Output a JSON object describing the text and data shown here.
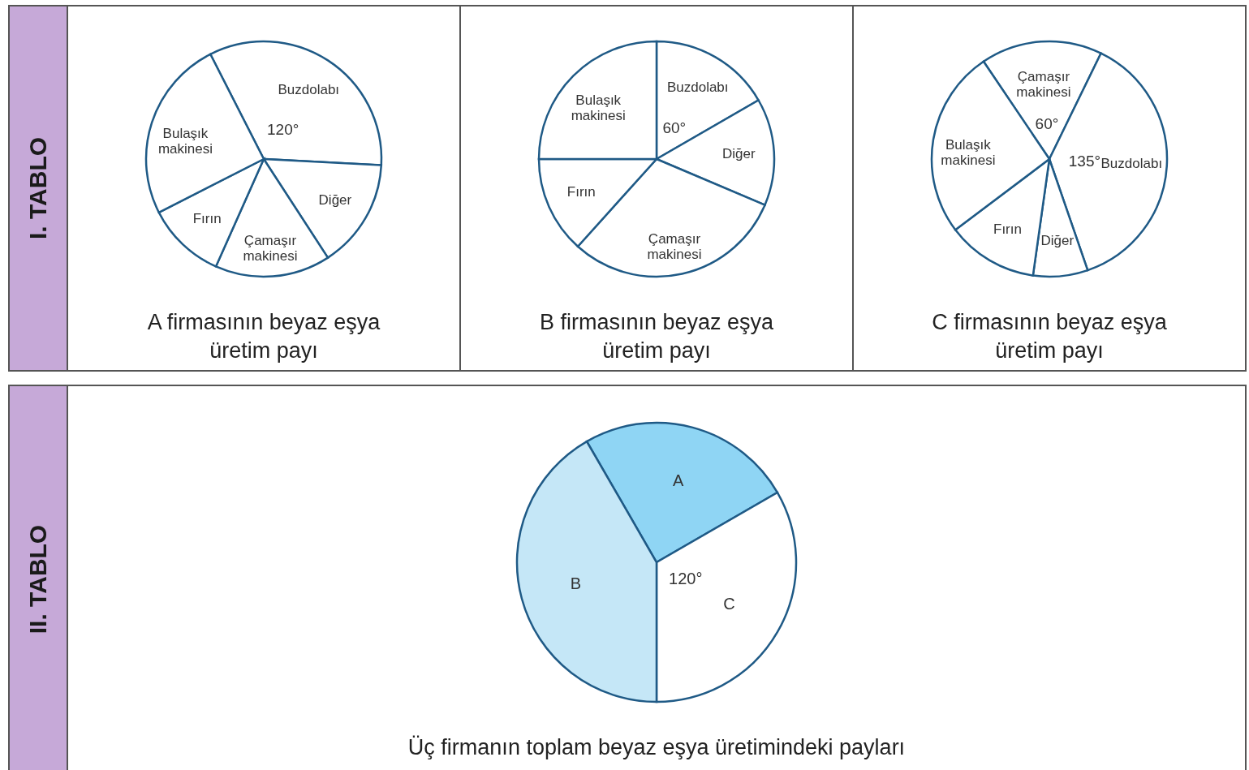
{
  "chart_data": [
    {
      "type": "pie",
      "title": "A firmasının beyaz eşya üretim payı",
      "annotations": [
        "I. TABLO"
      ],
      "categories": [
        "Buzdolabı",
        "Diğer",
        "Çamaşır makinesi",
        "Fırın",
        "Bulaşık makinesi"
      ],
      "values": [
        120,
        54,
        57,
        39,
        90
      ],
      "value_labels": [
        "120°",
        null,
        null,
        null,
        null
      ],
      "colors": [
        "#ffffff",
        "#ffffff",
        "#ffffff",
        "#ffffff",
        "#ffffff"
      ]
    },
    {
      "type": "pie",
      "title": "B firmasının beyaz eşya üretim payı",
      "categories": [
        "Buzdolabı",
        "Diğer",
        "Çamaşır makinesi",
        "Fırın",
        "Bulaşık makinesi"
      ],
      "values": [
        60,
        53,
        109,
        48,
        90
      ],
      "value_labels": [
        "60°",
        null,
        null,
        null,
        null
      ],
      "colors": [
        "#ffffff",
        "#ffffff",
        "#ffffff",
        "#ffffff",
        "#ffffff"
      ]
    },
    {
      "type": "pie",
      "title": "C firmasının beyaz eşya üretim payı",
      "categories": [
        "Çamaşır makinesi",
        "Buzdolabı",
        "Diğer",
        "Fırın",
        "Bulaşık makinesi"
      ],
      "values": [
        60,
        135,
        27,
        45,
        93
      ],
      "value_labels": [
        "60°",
        "135°",
        null,
        null,
        null
      ],
      "colors": [
        "#ffffff",
        "#ffffff",
        "#ffffff",
        "#ffffff",
        "#ffffff"
      ]
    },
    {
      "type": "pie",
      "title": "Üç firmanın toplam beyaz eşya üretimindeki payları",
      "annotations": [
        "II. TABLO"
      ],
      "categories": [
        "A",
        "C",
        "B"
      ],
      "values": [
        90,
        120,
        150
      ],
      "value_labels": [
        null,
        "120°",
        null
      ],
      "colors": [
        "#8fd5f4",
        "#ffffff",
        "#c5e7f7"
      ]
    }
  ]
}
